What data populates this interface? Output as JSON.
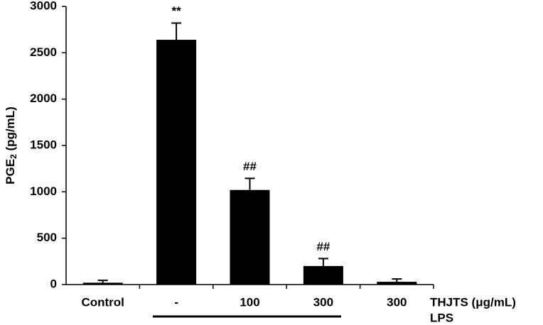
{
  "chart_data": {
    "type": "bar",
    "ylabel": [
      "PGE",
      "2",
      " (pg/mL)"
    ],
    "categories": [
      "Control",
      "-",
      "100",
      "300",
      "300"
    ],
    "values": [
      20,
      2640,
      1020,
      200,
      30
    ],
    "errors": [
      25,
      180,
      125,
      80,
      30
    ],
    "annotations": [
      null,
      "**",
      "##",
      "##",
      null
    ],
    "x_row_label": "THJTS (μg/mL)",
    "group_label": "LPS",
    "color": "#000000",
    "ylim": [
      0,
      3000
    ],
    "yticks": [
      0,
      500,
      1000,
      1500,
      2000,
      2500,
      3000
    ],
    "grid": false
  }
}
